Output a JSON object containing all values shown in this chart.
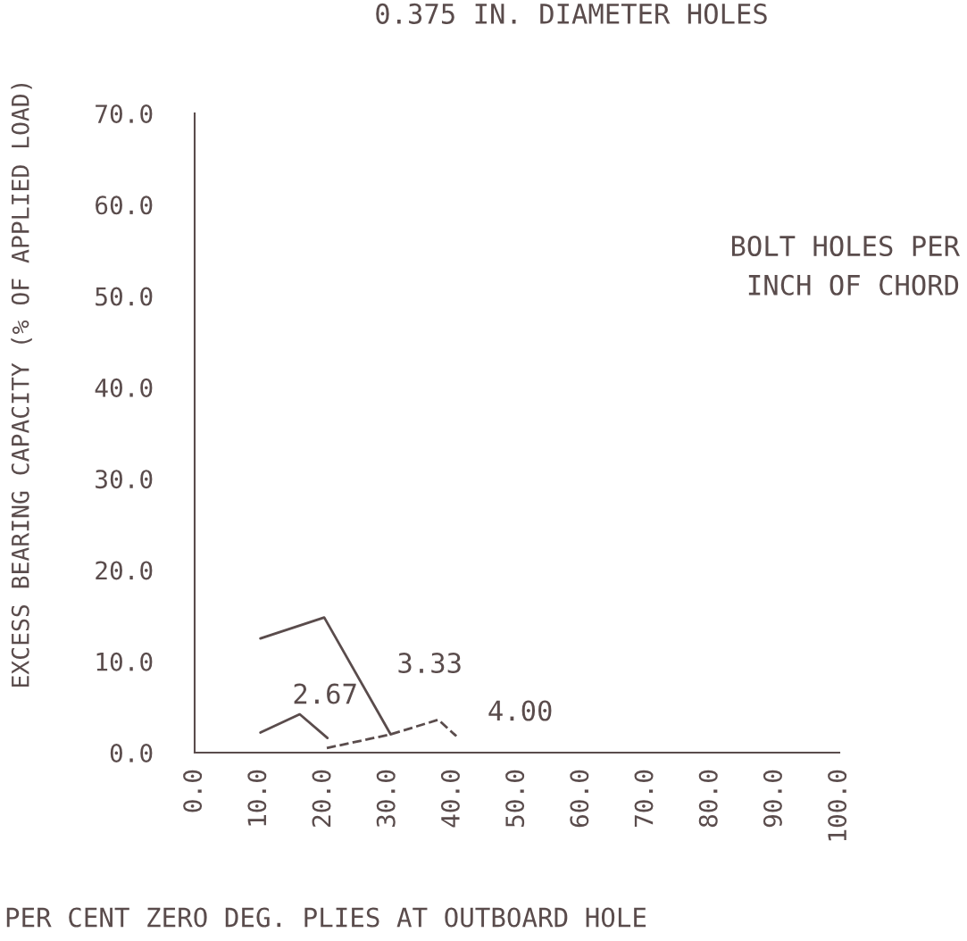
{
  "chart_data": {
    "type": "line",
    "title": "0.375 IN. DIAMETER HOLES",
    "xlabel": "PER CENT ZERO DEG. PLIES AT OUTBOARD HOLE",
    "ylabel": "EXCESS BEARING CAPACITY (% OF APPLIED LOAD)",
    "legend_title": "BOLT HOLES PER\nINCH OF CHORD",
    "xlim": [
      0,
      100
    ],
    "ylim": [
      0,
      70
    ],
    "xticks": [
      {
        "value": 0,
        "label": "0.0"
      },
      {
        "value": 10,
        "label": "10.0"
      },
      {
        "value": 20,
        "label": "20.0"
      },
      {
        "value": 30,
        "label": "30.0"
      },
      {
        "value": 40,
        "label": "40.0"
      },
      {
        "value": 50,
        "label": "50.0"
      },
      {
        "value": 60,
        "label": "60.0"
      },
      {
        "value": 70,
        "label": "70.0"
      },
      {
        "value": 80,
        "label": "80.0"
      },
      {
        "value": 90,
        "label": "90.0"
      },
      {
        "value": 100,
        "label": "100.0"
      }
    ],
    "yticks": [
      {
        "value": 0,
        "label": "0.0"
      },
      {
        "value": 10,
        "label": "10.0"
      },
      {
        "value": 20,
        "label": "20.0"
      },
      {
        "value": 30,
        "label": "30.0"
      },
      {
        "value": 40,
        "label": "40.0"
      },
      {
        "value": 50,
        "label": "50.0"
      },
      {
        "value": 60,
        "label": "60.0"
      },
      {
        "value": 70,
        "label": "70.0"
      }
    ],
    "grid": false,
    "legend": false,
    "marker": "none",
    "series": [
      {
        "name": "2.67",
        "color": "#5a4c4c",
        "line_style": "solid",
        "x": [
          10.2,
          16.3,
          20.6
        ],
        "values": [
          2.2,
          4.2,
          1.6
        ]
      },
      {
        "name": "3.33",
        "color": "#5a4c4c",
        "line_style": "solid",
        "x": [
          10.2,
          20.1,
          30.4
        ],
        "values": [
          12.5,
          14.8,
          2.0
        ]
      },
      {
        "name": "4.00",
        "color": "#5a4c4c",
        "line_style": "dashed",
        "x": [
          20.5,
          30.4,
          37.8,
          40.6
        ],
        "values": [
          0.5,
          2.0,
          3.6,
          1.8
        ]
      }
    ]
  }
}
